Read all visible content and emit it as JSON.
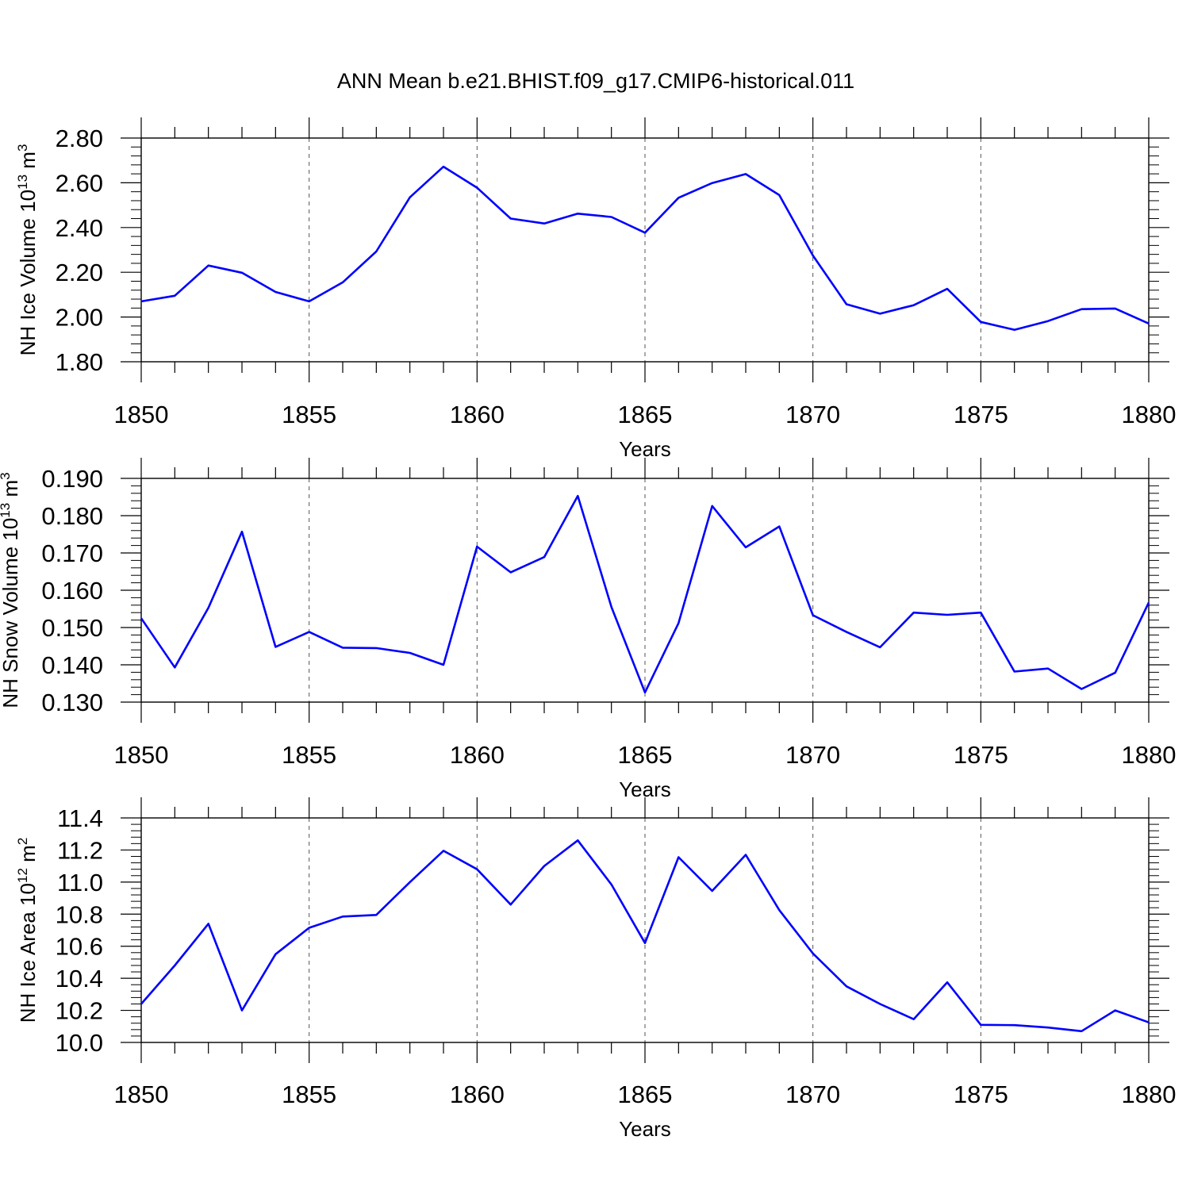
{
  "title": "ANN Mean b.e21.BHIST.f09_g17.CMIP6-historical.011",
  "colors": {
    "line": "#0000ff",
    "axis": "#000000",
    "grid": "#555555"
  },
  "chart_data": [
    {
      "type": "line",
      "xlabel": "Years",
      "ylabel": "NH Ice Volume 10",
      "ylabel_sup": "13",
      "ylabel_unit": " m",
      "ylabel_unit_sup": "3",
      "xlim": [
        1850,
        1880
      ],
      "ylim": [
        1.8,
        2.8
      ],
      "xticks": [
        "1850",
        "1855",
        "1860",
        "1865",
        "1870",
        "1875",
        "1880"
      ],
      "yticks": [
        "1.80",
        "2.00",
        "2.20",
        "2.40",
        "2.60",
        "2.80"
      ],
      "grid": "vertical dashed at major x ticks",
      "series": [
        {
          "x": [
            1850,
            1851,
            1852,
            1853,
            1854,
            1855,
            1856,
            1857,
            1858,
            1859,
            1860,
            1861,
            1862,
            1863,
            1864,
            1865,
            1866,
            1867,
            1868,
            1869,
            1870,
            1871,
            1872,
            1873,
            1874,
            1875,
            1876,
            1877,
            1878,
            1879,
            1880
          ],
          "values": [
            2.07,
            2.095,
            2.23,
            2.198,
            2.112,
            2.07,
            2.155,
            2.293,
            2.535,
            2.672,
            2.578,
            2.44,
            2.418,
            2.462,
            2.447,
            2.377,
            2.533,
            2.599,
            2.639,
            2.545,
            2.275,
            2.057,
            2.015,
            2.053,
            2.126,
            1.978,
            1.943,
            1.982,
            2.035,
            2.038,
            1.971
          ]
        }
      ]
    },
    {
      "type": "line",
      "xlabel": "Years",
      "ylabel": "NH Snow Volume 10",
      "ylabel_sup": "13",
      "ylabel_unit": " m",
      "ylabel_unit_sup": "3",
      "xlim": [
        1850,
        1880
      ],
      "ylim": [
        0.13,
        0.19
      ],
      "xticks": [
        "1850",
        "1855",
        "1860",
        "1865",
        "1870",
        "1875",
        "1880"
      ],
      "yticks": [
        "0.130",
        "0.140",
        "0.150",
        "0.160",
        "0.170",
        "0.180",
        "0.190"
      ],
      "grid": "vertical dashed at major x ticks",
      "series": [
        {
          "x": [
            1850,
            1851,
            1852,
            1853,
            1854,
            1855,
            1856,
            1857,
            1858,
            1859,
            1860,
            1861,
            1862,
            1863,
            1864,
            1865,
            1866,
            1867,
            1868,
            1869,
            1870,
            1871,
            1872,
            1873,
            1874,
            1875,
            1876,
            1877,
            1878,
            1879,
            1880
          ],
          "values": [
            0.1525,
            0.1393,
            0.1553,
            0.1757,
            0.1448,
            0.1488,
            0.1446,
            0.1445,
            0.1432,
            0.14,
            0.1717,
            0.1648,
            0.1689,
            0.1853,
            0.1555,
            0.1326,
            0.1512,
            0.1826,
            0.1715,
            0.1771,
            0.1533,
            0.1488,
            0.1447,
            0.154,
            0.1534,
            0.154,
            0.1382,
            0.139,
            0.1335,
            0.1379,
            0.1567
          ]
        }
      ]
    },
    {
      "type": "line",
      "xlabel": "Years",
      "ylabel": "NH Ice Area 10",
      "ylabel_sup": "12",
      "ylabel_unit": " m",
      "ylabel_unit_sup": "2",
      "xlim": [
        1850,
        1880
      ],
      "ylim": [
        10.0,
        11.4
      ],
      "xticks": [
        "1850",
        "1855",
        "1860",
        "1865",
        "1870",
        "1875",
        "1880"
      ],
      "yticks": [
        "10.0",
        "10.2",
        "10.4",
        "10.6",
        "10.8",
        "11.0",
        "11.2",
        "11.4"
      ],
      "grid": "vertical dashed at major x ticks",
      "series": [
        {
          "x": [
            1850,
            1851,
            1852,
            1853,
            1854,
            1855,
            1856,
            1857,
            1858,
            1859,
            1860,
            1861,
            1862,
            1863,
            1864,
            1865,
            1866,
            1867,
            1868,
            1869,
            1870,
            1871,
            1872,
            1873,
            1874,
            1875,
            1876,
            1877,
            1878,
            1879,
            1880
          ],
          "values": [
            10.24,
            10.48,
            10.74,
            10.2,
            10.55,
            10.715,
            10.785,
            10.795,
            11.0,
            11.195,
            11.08,
            10.86,
            11.1,
            11.26,
            10.985,
            10.62,
            11.155,
            10.945,
            11.17,
            10.825,
            10.555,
            10.35,
            10.24,
            10.145,
            10.375,
            10.11,
            10.108,
            10.093,
            10.07,
            10.2,
            10.125
          ]
        }
      ]
    }
  ]
}
